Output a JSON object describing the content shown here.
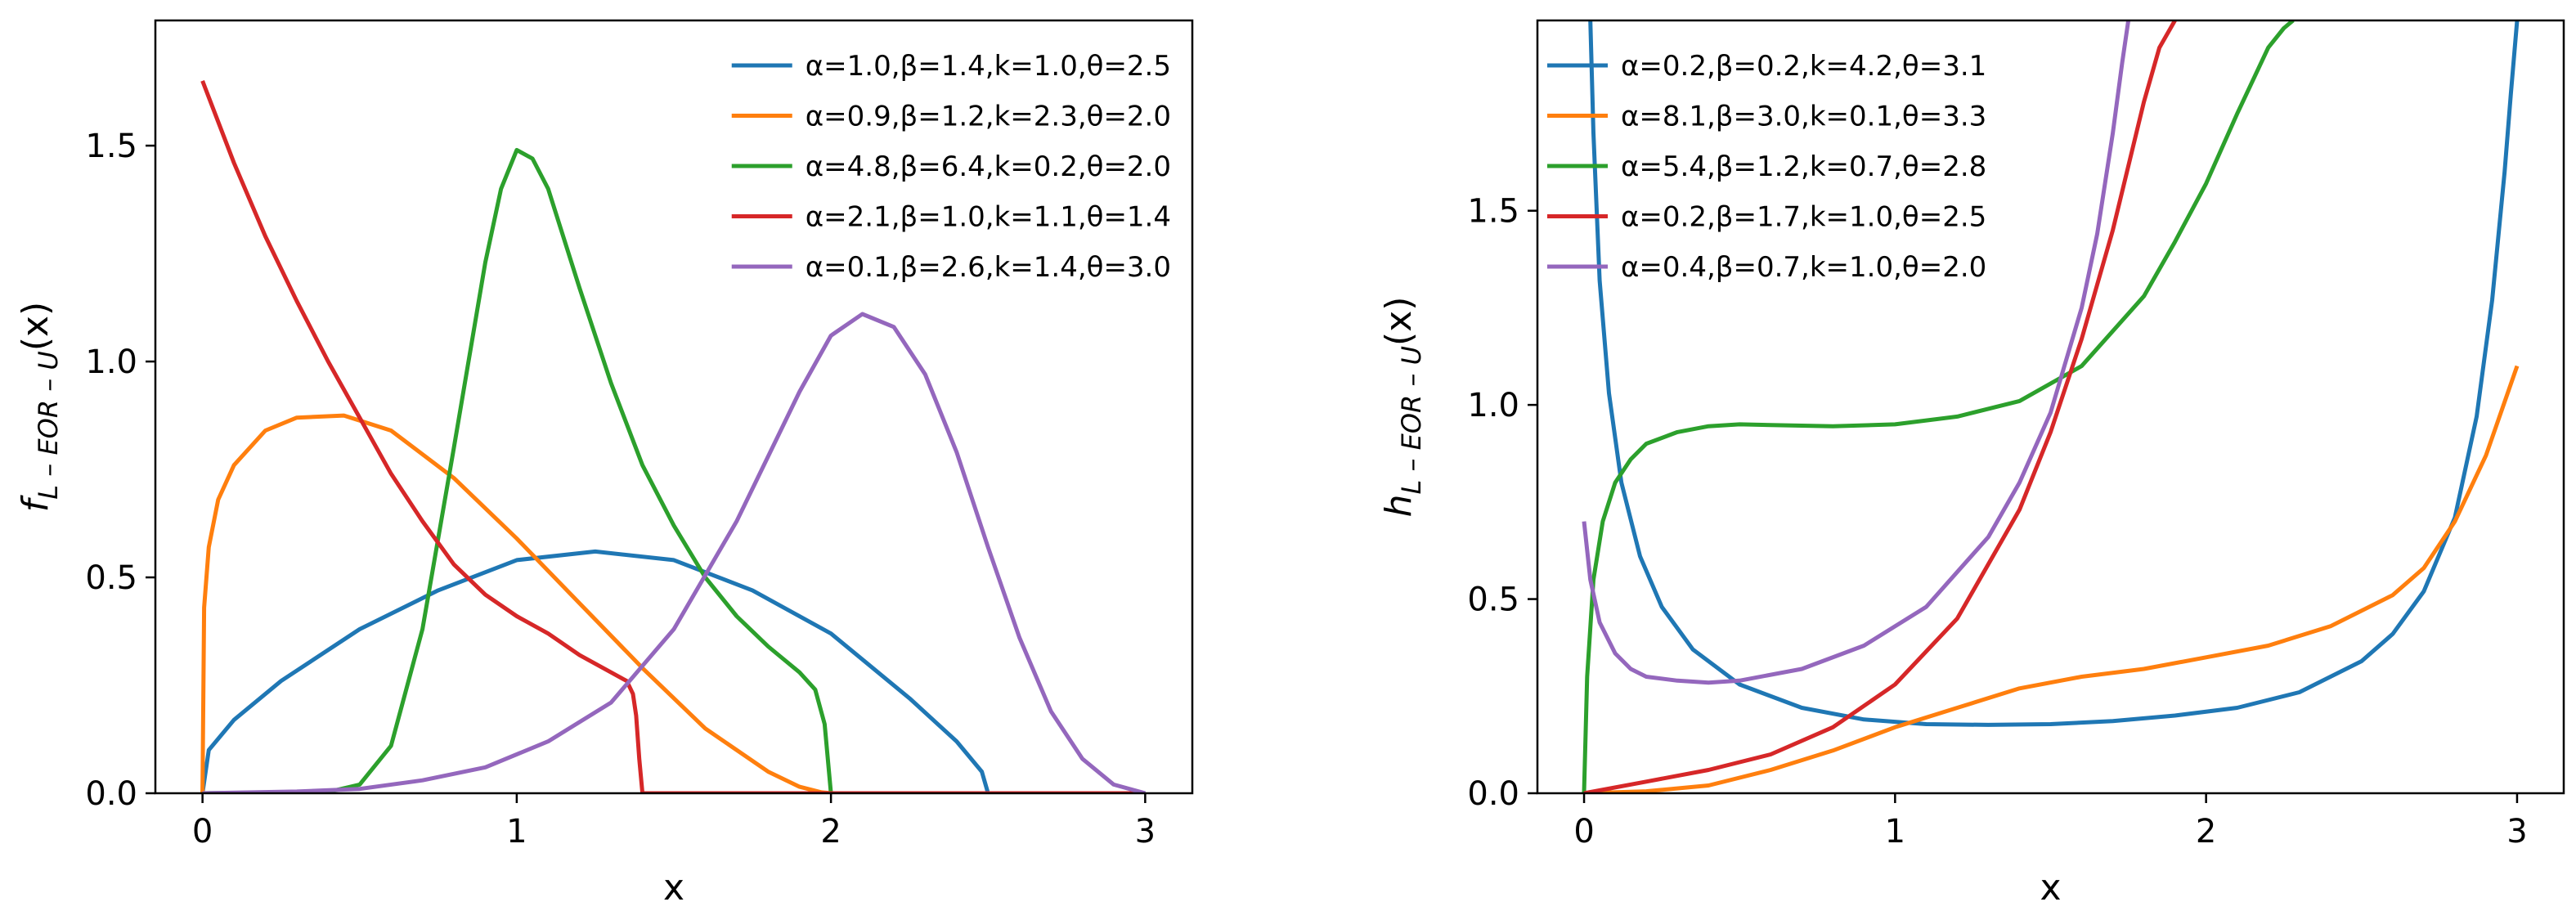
{
  "chart_data": [
    {
      "type": "line",
      "xlabel": "x",
      "ylabel": "f_{L-EOR-U}(x)",
      "ylabel_parts": {
        "main": "f",
        "sub": "L – EOR – U",
        "args": "(x)"
      },
      "xlim": [
        -0.15,
        3.15
      ],
      "ylim": [
        0,
        1.79
      ],
      "xticks": [
        0,
        1,
        2,
        3
      ],
      "yticks": [
        0.0,
        0.5,
        1.0,
        1.5
      ],
      "xtick_labels": [
        "0",
        "1",
        "2",
        "3"
      ],
      "ytick_labels": [
        "0.0",
        "0.5",
        "1.0",
        "1.5"
      ],
      "legend_position": "top-right",
      "series": [
        {
          "name": "α=1.0,β=1.4,k=1.0,θ=2.5",
          "color": "#1f77b4",
          "x": [
            0,
            0.02,
            0.1,
            0.25,
            0.5,
            0.75,
            1.0,
            1.25,
            1.5,
            1.75,
            2.0,
            2.25,
            2.4,
            2.48,
            2.5,
            2.53,
            3.0
          ],
          "y": [
            0,
            0.1,
            0.17,
            0.26,
            0.38,
            0.47,
            0.54,
            0.56,
            0.54,
            0.47,
            0.37,
            0.22,
            0.12,
            0.05,
            0,
            0,
            0
          ]
        },
        {
          "name": "α=0.9,β=1.2,k=2.3,θ=2.0",
          "color": "#ff7f0e",
          "x": [
            0,
            0.005,
            0.02,
            0.05,
            0.1,
            0.2,
            0.3,
            0.45,
            0.6,
            0.8,
            1.0,
            1.2,
            1.4,
            1.6,
            1.8,
            1.9,
            1.97,
            2.0,
            2.5,
            3.0
          ],
          "y": [
            0,
            0.43,
            0.57,
            0.68,
            0.76,
            0.84,
            0.87,
            0.875,
            0.84,
            0.73,
            0.59,
            0.44,
            0.29,
            0.15,
            0.05,
            0.015,
            0.002,
            0,
            0,
            0
          ]
        },
        {
          "name": "α=4.8,β=6.4,k=0.2,θ=2.0",
          "color": "#2ca02c",
          "x": [
            0,
            0.4,
            0.5,
            0.6,
            0.7,
            0.8,
            0.9,
            0.95,
            1.0,
            1.05,
            1.1,
            1.2,
            1.3,
            1.4,
            1.5,
            1.6,
            1.7,
            1.8,
            1.9,
            1.95,
            1.98,
            2.0,
            2.5,
            3.0
          ],
          "y": [
            0,
            0.003,
            0.02,
            0.11,
            0.38,
            0.8,
            1.23,
            1.4,
            1.49,
            1.47,
            1.4,
            1.17,
            0.95,
            0.76,
            0.62,
            0.5,
            0.41,
            0.34,
            0.28,
            0.24,
            0.16,
            0,
            0,
            0
          ]
        },
        {
          "name": "α=2.1,β=1.0,k=1.1,θ=1.4",
          "color": "#d62728",
          "x": [
            0,
            0.1,
            0.2,
            0.3,
            0.4,
            0.5,
            0.6,
            0.7,
            0.8,
            0.9,
            1.0,
            1.1,
            1.2,
            1.3,
            1.35,
            1.37,
            1.38,
            1.39,
            1.4,
            2.0,
            3.0
          ],
          "y": [
            1.65,
            1.46,
            1.29,
            1.14,
            1.0,
            0.87,
            0.74,
            0.63,
            0.53,
            0.46,
            0.41,
            0.37,
            0.32,
            0.28,
            0.26,
            0.23,
            0.18,
            0.08,
            0,
            0,
            0
          ]
        },
        {
          "name": "α=0.1,β=2.6,k=1.4,θ=3.0",
          "color": "#9467bd",
          "x": [
            0,
            0.3,
            0.5,
            0.7,
            0.9,
            1.1,
            1.3,
            1.5,
            1.7,
            1.9,
            2.0,
            2.1,
            2.2,
            2.3,
            2.4,
            2.5,
            2.6,
            2.7,
            2.8,
            2.9,
            3.0
          ],
          "y": [
            0,
            0.004,
            0.01,
            0.03,
            0.06,
            0.12,
            0.21,
            0.38,
            0.63,
            0.93,
            1.06,
            1.11,
            1.08,
            0.97,
            0.79,
            0.57,
            0.36,
            0.19,
            0.08,
            0.02,
            0
          ]
        }
      ]
    },
    {
      "type": "line",
      "xlabel": "x",
      "ylabel": "h_{L-EOR-U}(x)",
      "ylabel_parts": {
        "main": "h",
        "sub": "L – EOR – U",
        "args": "(x)"
      },
      "xlim": [
        -0.15,
        3.15
      ],
      "ylim": [
        0,
        1.99
      ],
      "xticks": [
        0,
        1,
        2,
        3
      ],
      "yticks": [
        0.0,
        0.5,
        1.0,
        1.5
      ],
      "xtick_labels": [
        "0",
        "1",
        "2",
        "3"
      ],
      "ytick_labels": [
        "0.0",
        "0.5",
        "1.0",
        "1.5"
      ],
      "legend_position": "top-left",
      "series": [
        {
          "name": "α=0.2,β=0.2,k=4.2,θ=3.1",
          "color": "#1f77b4",
          "x": [
            0.02,
            0.03,
            0.05,
            0.08,
            0.12,
            0.18,
            0.25,
            0.35,
            0.5,
            0.7,
            0.9,
            1.1,
            1.3,
            1.5,
            1.7,
            1.9,
            2.1,
            2.3,
            2.5,
            2.6,
            2.7,
            2.8,
            2.87,
            2.92,
            2.96,
            2.98,
            3.0
          ],
          "y": [
            1.99,
            1.7,
            1.32,
            1.03,
            0.8,
            0.61,
            0.48,
            0.37,
            0.28,
            0.22,
            0.19,
            0.178,
            0.176,
            0.178,
            0.186,
            0.2,
            0.22,
            0.26,
            0.34,
            0.41,
            0.52,
            0.71,
            0.97,
            1.27,
            1.6,
            1.8,
            1.99
          ]
        },
        {
          "name": "α=8.1,β=3.0,k=0.1,θ=3.3",
          "color": "#ff7f0e",
          "x": [
            0,
            0.2,
            0.4,
            0.6,
            0.8,
            1.0,
            1.2,
            1.4,
            1.6,
            1.8,
            2.0,
            2.2,
            2.4,
            2.6,
            2.7,
            2.8,
            2.9,
            3.0
          ],
          "y": [
            0,
            0.005,
            0.02,
            0.06,
            0.11,
            0.17,
            0.22,
            0.27,
            0.3,
            0.32,
            0.35,
            0.38,
            0.43,
            0.51,
            0.58,
            0.7,
            0.87,
            1.1
          ]
        },
        {
          "name": "α=5.4,β=1.2,k=0.7,θ=2.8",
          "color": "#2ca02c",
          "x": [
            0,
            0.01,
            0.03,
            0.06,
            0.1,
            0.15,
            0.2,
            0.3,
            0.4,
            0.5,
            0.6,
            0.8,
            1.0,
            1.2,
            1.4,
            1.6,
            1.8,
            1.9,
            2.0,
            2.1,
            2.2,
            2.25,
            2.28
          ],
          "y": [
            0,
            0.3,
            0.55,
            0.7,
            0.8,
            0.86,
            0.9,
            0.93,
            0.945,
            0.95,
            0.948,
            0.945,
            0.95,
            0.97,
            1.01,
            1.1,
            1.28,
            1.42,
            1.57,
            1.75,
            1.92,
            1.97,
            1.99
          ]
        },
        {
          "name": "α=0.2,β=1.7,k=1.0,θ=2.5",
          "color": "#d62728",
          "x": [
            0,
            0.2,
            0.4,
            0.6,
            0.8,
            1.0,
            1.2,
            1.4,
            1.5,
            1.6,
            1.7,
            1.8,
            1.85,
            1.9
          ],
          "y": [
            0,
            0.03,
            0.06,
            0.1,
            0.17,
            0.28,
            0.45,
            0.73,
            0.93,
            1.17,
            1.45,
            1.78,
            1.92,
            1.99
          ]
        },
        {
          "name": "α=0.4,β=0.7,k=1.0,θ=2.0",
          "color": "#9467bd",
          "x": [
            0,
            0.02,
            0.05,
            0.1,
            0.15,
            0.2,
            0.3,
            0.4,
            0.5,
            0.7,
            0.9,
            1.1,
            1.3,
            1.4,
            1.5,
            1.6,
            1.65,
            1.7,
            1.73,
            1.75
          ],
          "y": [
            0.7,
            0.55,
            0.44,
            0.36,
            0.32,
            0.3,
            0.29,
            0.285,
            0.29,
            0.32,
            0.38,
            0.48,
            0.66,
            0.8,
            0.98,
            1.25,
            1.44,
            1.7,
            1.88,
            1.99
          ]
        }
      ]
    }
  ]
}
